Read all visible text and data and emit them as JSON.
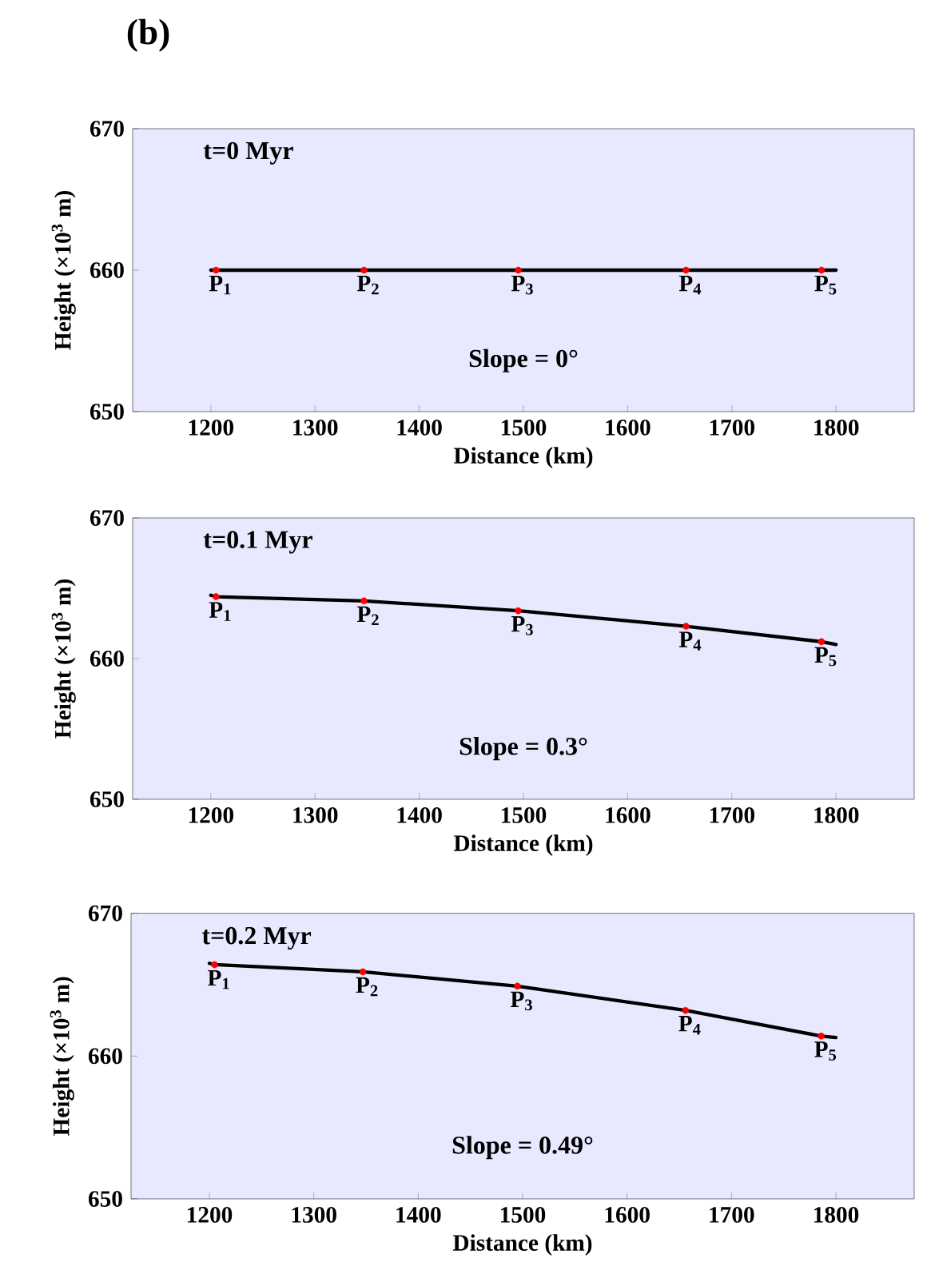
{
  "chart_data": [
    {
      "type": "line",
      "title": "(b)",
      "xlabel": "Distance (km)",
      "ylabel": "Height (×10$^{3}$ m)",
      "xlim": [
        1125,
        1875
      ],
      "ylim": [
        650,
        670
      ],
      "xticks": [
        1200,
        1300,
        1400,
        1500,
        1600,
        1700,
        1800
      ],
      "yticks": [
        650,
        660,
        670
      ],
      "series": [
        {
          "color": "#000000",
          "x": [
            1200,
            1205,
            1347,
            1495,
            1656,
            1786,
            1800
          ],
          "values": [
            660,
            660,
            660,
            660,
            660,
            660,
            660
          ]
        },
        {
          "type": "scatter",
          "color": "#ff0000",
          "x": [
            1205,
            1347,
            1495,
            1656,
            1786
          ],
          "values": [
            660,
            660,
            660,
            660,
            660
          ]
        }
      ],
      "annotations": [
        "t=0 Myr",
        "Slope = 0°",
        {
          "text": "P$_{1}$",
          "x": 1205,
          "y": 660
        },
        {
          "text": "P$_{2}$",
          "x": 1347,
          "y": 660
        },
        {
          "text": "P$_{3}$",
          "x": 1495,
          "y": 660
        },
        {
          "text": "P$_{4}$",
          "x": 1656,
          "y": 660
        },
        {
          "text": "P$_{5}$",
          "x": 1786,
          "y": 660
        }
      ]
    },
    {
      "type": "line",
      "xlabel": "Distance (km)",
      "ylabel": "Height (×10$^{3}$ m)",
      "xlim": [
        1125,
        1875
      ],
      "ylim": [
        650,
        670
      ],
      "xticks": [
        1200,
        1300,
        1400,
        1500,
        1600,
        1700,
        1800
      ],
      "yticks": [
        650,
        660,
        670
      ],
      "series": [
        {
          "color": "#000000",
          "x": [
            1200,
            1205,
            1347,
            1495,
            1656,
            1786,
            1800
          ],
          "values": [
            664.5,
            664.4,
            664.1,
            663.4,
            662.3,
            661.2,
            661.0
          ]
        },
        {
          "type": "scatter",
          "color": "#ff0000",
          "x": [
            1205,
            1347,
            1495,
            1656,
            1786
          ],
          "values": [
            664.4,
            664.1,
            663.4,
            662.3,
            661.2
          ]
        }
      ],
      "annotations": [
        "t=0.1 Myr",
        "Slope = 0.3°",
        {
          "text": "P$_{1}$",
          "x": 1205,
          "y": 664.4
        },
        {
          "text": "P$_{2}$",
          "x": 1347,
          "y": 664.1
        },
        {
          "text": "P$_{3}$",
          "x": 1495,
          "y": 663.4
        },
        {
          "text": "P$_{4}$",
          "x": 1656,
          "y": 662.3
        },
        {
          "text": "P$_{5}$",
          "x": 1786,
          "y": 661.2
        }
      ]
    },
    {
      "type": "line",
      "xlabel": "Distance (km)",
      "ylabel": "Height (×10$^{3}$ m)",
      "xlim": [
        1125,
        1875
      ],
      "ylim": [
        650,
        670
      ],
      "xticks": [
        1200,
        1300,
        1400,
        1500,
        1600,
        1700,
        1800
      ],
      "yticks": [
        650,
        660,
        670
      ],
      "series": [
        {
          "color": "#000000",
          "x": [
            1200,
            1205,
            1347,
            1495,
            1656,
            1786,
            1800
          ],
          "values": [
            666.5,
            666.4,
            665.9,
            664.9,
            663.2,
            661.4,
            661.3
          ]
        },
        {
          "type": "scatter",
          "color": "#ff0000",
          "x": [
            1205,
            1347,
            1495,
            1656,
            1786
          ],
          "values": [
            666.4,
            665.9,
            664.9,
            663.2,
            661.4
          ]
        }
      ],
      "annotations": [
        "t=0.2 Myr",
        "Slope = 0.49°",
        {
          "text": "P$_{1}$",
          "x": 1205,
          "y": 666.4
        },
        {
          "text": "P$_{2}$",
          "x": 1347,
          "y": 665.9
        },
        {
          "text": "P$_{3}$",
          "x": 1495,
          "y": 664.9
        },
        {
          "text": "P$_{4}$",
          "x": 1656,
          "y": 663.2
        },
        {
          "text": "P$_{5}$",
          "x": 1786,
          "y": 661.4
        }
      ]
    }
  ]
}
